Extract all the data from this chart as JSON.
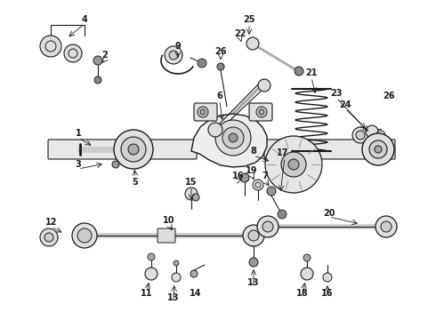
{
  "bg_color": "#ffffff",
  "fg_color": "#1a1a1a",
  "line_color": "#2a2a2a",
  "gray": "#555555",
  "light_gray": "#aaaaaa",
  "mid_gray": "#777777"
}
